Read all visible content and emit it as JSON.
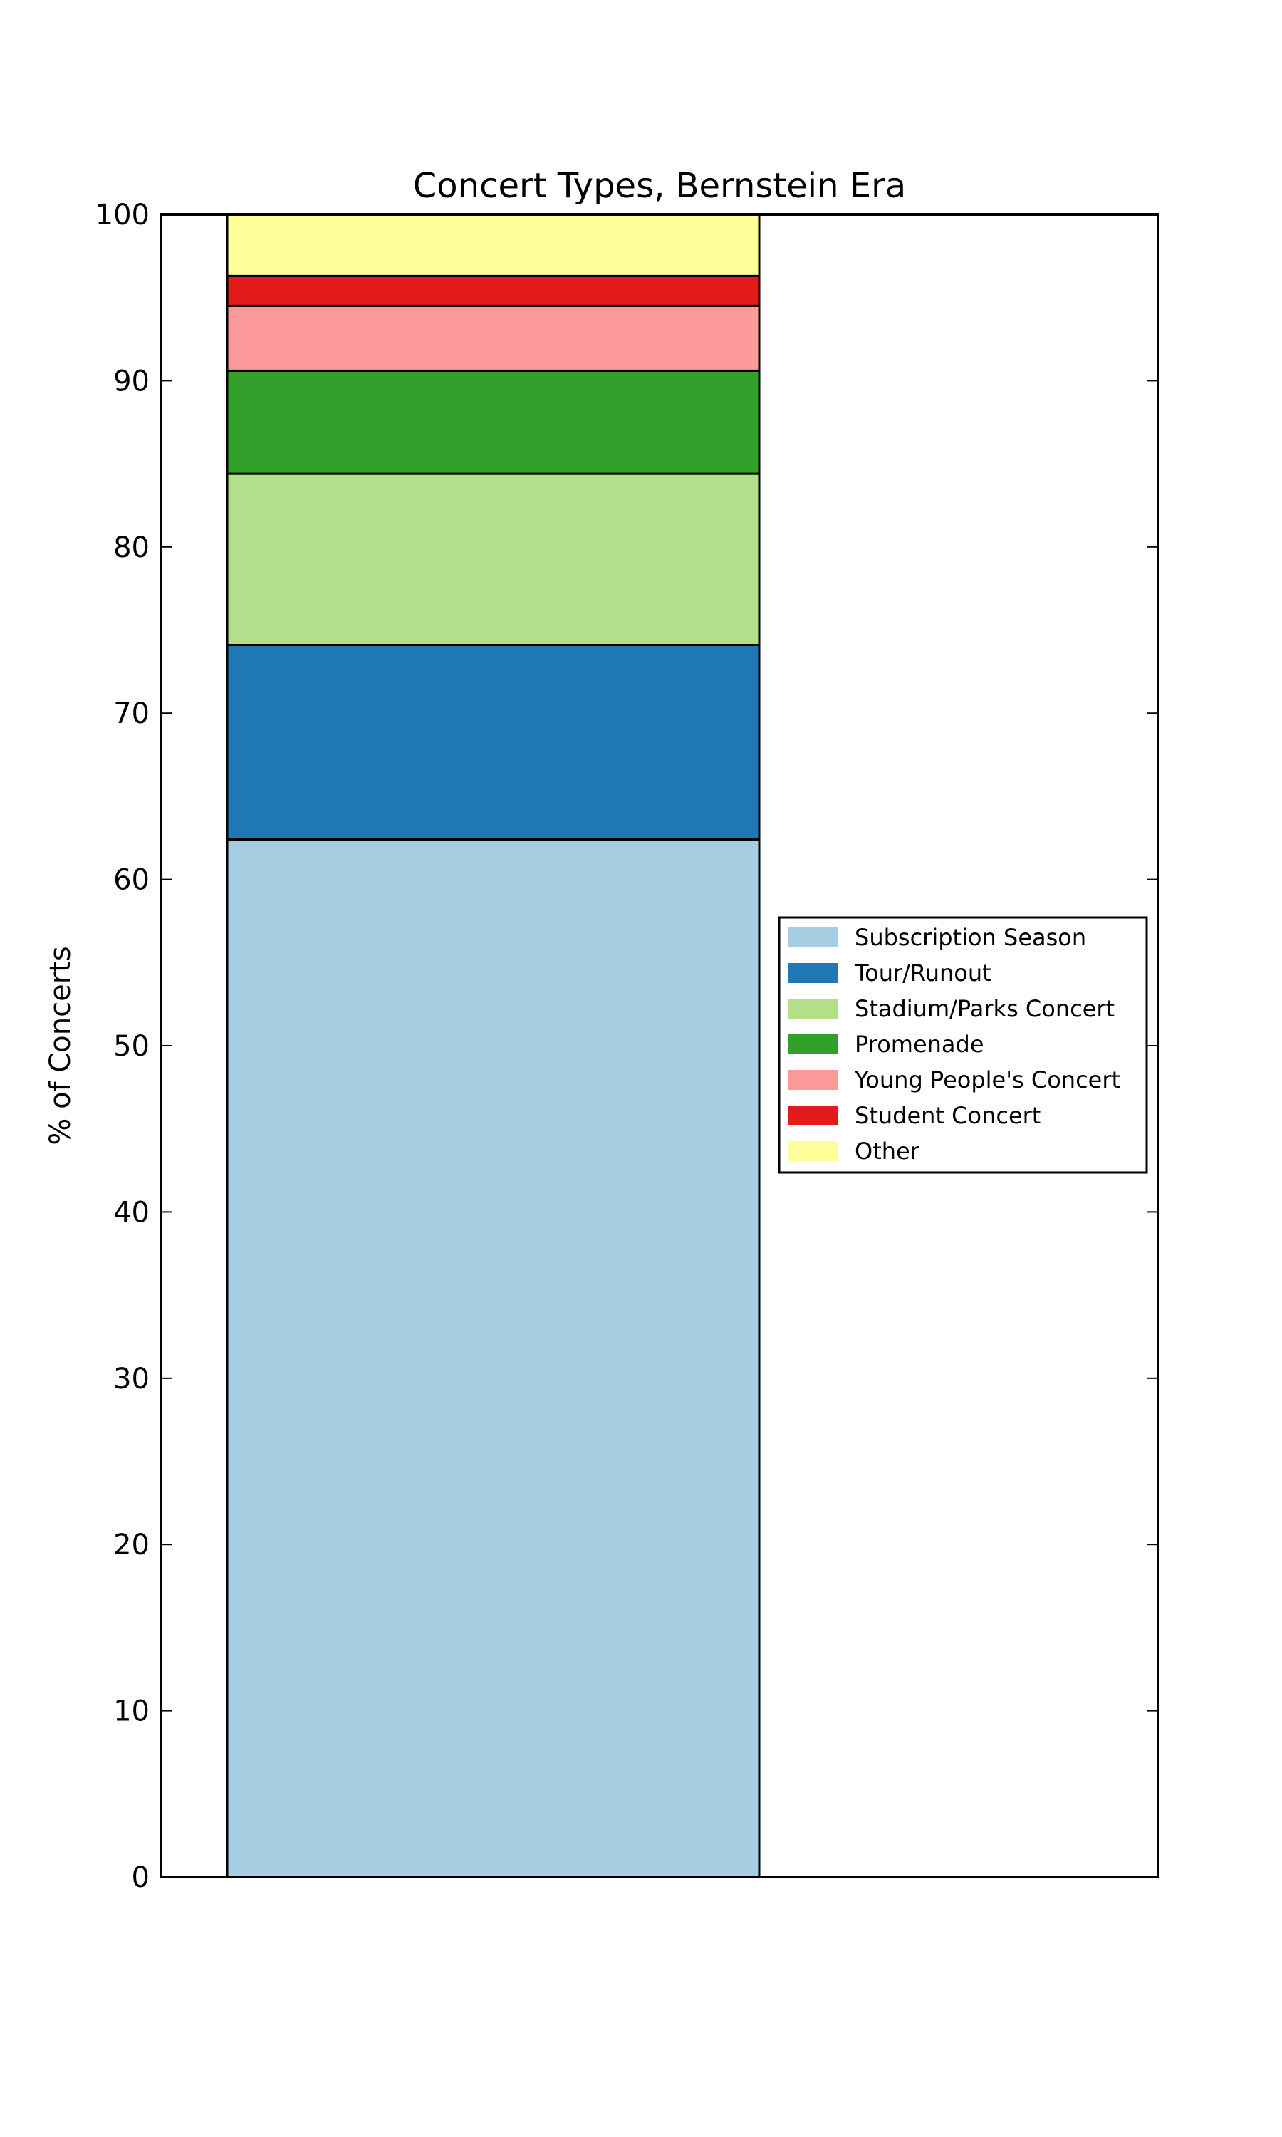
{
  "chart_data": {
    "type": "bar",
    "stacked": true,
    "title": "Concert Types, Bernstein Era",
    "xlabel": "",
    "ylabel": "% of Concerts",
    "ylim": [
      0,
      100
    ],
    "yticks": [
      "0",
      "10",
      "20",
      "30",
      "40",
      "50",
      "60",
      "70",
      "80",
      "90",
      "100"
    ],
    "categories": [
      ""
    ],
    "grid": false,
    "legend_position": "center-right",
    "series": [
      {
        "name": "Subscription Season",
        "values": [
          62.4
        ],
        "color": "#a6cee3"
      },
      {
        "name": "Tour/Runout",
        "values": [
          11.7
        ],
        "color": "#1f78b4"
      },
      {
        "name": "Stadium/Parks Concert",
        "values": [
          10.3
        ],
        "color": "#b2df8a"
      },
      {
        "name": "Promenade",
        "values": [
          6.2
        ],
        "color": "#33a02c"
      },
      {
        "name": "Young People's Concert",
        "values": [
          3.9
        ],
        "color": "#fb9a99"
      },
      {
        "name": "Student Concert",
        "values": [
          1.8
        ],
        "color": "#e31a1c"
      },
      {
        "name": "Other",
        "values": [
          3.7
        ],
        "color": "#ffff99"
      }
    ]
  }
}
